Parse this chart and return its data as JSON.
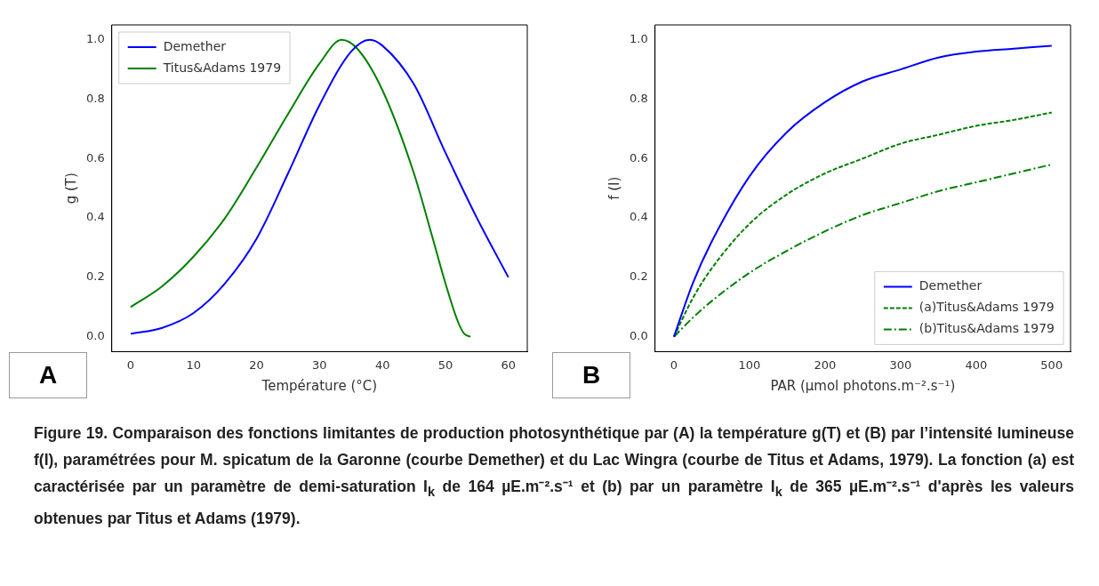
{
  "chart_data": [
    {
      "type": "line",
      "xlabel": "Température (°C)",
      "ylabel": "g (T)",
      "xlim": [
        -3,
        63
      ],
      "ylim": [
        -0.05,
        1.05
      ],
      "xticks": [
        0,
        10,
        20,
        30,
        40,
        50,
        60
      ],
      "yticks": [
        {
          "value": 0,
          "label": "0.0"
        },
        {
          "value": 0.2,
          "label": "0.2"
        },
        {
          "value": 0.4,
          "label": "0.4"
        },
        {
          "value": 0.6,
          "label": "0.6"
        },
        {
          "value": 0.8,
          "label": "0.8"
        },
        {
          "value": 1,
          "label": "1.0"
        }
      ],
      "grid": false,
      "legend": "top left",
      "annotations": [
        "A"
      ],
      "series": [
        {
          "name": "Demether",
          "color": "#0000ff",
          "line_style": "solid",
          "x": [
            0,
            5,
            10,
            15,
            20,
            25,
            30,
            35,
            38,
            40,
            45,
            50,
            55,
            60
          ],
          "values": [
            0.01,
            0.03,
            0.08,
            0.18,
            0.33,
            0.55,
            0.78,
            0.96,
            1.0,
            0.98,
            0.85,
            0.62,
            0.4,
            0.2
          ]
        },
        {
          "name": "Titus&Adams 1979",
          "color": "#008000",
          "line_style": "solid",
          "x": [
            0,
            5,
            10,
            15,
            20,
            25,
            30,
            33.5,
            36,
            40,
            45,
            48,
            50,
            52,
            53,
            54
          ],
          "values": [
            0.1,
            0.17,
            0.27,
            0.4,
            0.57,
            0.75,
            0.92,
            1.0,
            0.97,
            0.83,
            0.55,
            0.33,
            0.18,
            0.05,
            0.01,
            0.0
          ]
        }
      ]
    },
    {
      "type": "line",
      "xlabel": "PAR (µmol photons.m⁻².s⁻¹)",
      "ylabel": "f (I)",
      "xlim": [
        -25,
        525
      ],
      "ylim": [
        -0.05,
        1.05
      ],
      "xticks": [
        0,
        100,
        200,
        300,
        400,
        500
      ],
      "yticks": [
        {
          "value": 0,
          "label": "0.0"
        },
        {
          "value": 0.2,
          "label": "0.2"
        },
        {
          "value": 0.4,
          "label": "0.4"
        },
        {
          "value": 0.6,
          "label": "0.6"
        },
        {
          "value": 0.8,
          "label": "0.8"
        },
        {
          "value": 1,
          "label": "1.0"
        }
      ],
      "grid": false,
      "legend": "bottom right",
      "annotations": [
        "B",
        "Figure 19. Comparaison des fonctions limitantes de production photosynthétique par (A) la température g(T) et (B) par l’intensité lumineuse f(I), paramétrées pour M. spicatum de la Garonne (courbe Demether) et du Lac Wingra (courbe de Titus et Adams, 1979). La fonction (a) est caractérisée par un paramètre de demi-saturation I$_{k}$ de 164 µE.m⁻².s⁻¹ et (b) par un paramètre I$_{k}$ de 365 µE.m⁻².s⁻¹ d'après les valeurs obtenues par Titus et Adams (1979)."
      ],
      "series": [
        {
          "name": "Demether",
          "color": "#0000ff",
          "line_style": "solid",
          "x": [
            0,
            25,
            50,
            100,
            150,
            200,
            250,
            300,
            350,
            400,
            450,
            500
          ],
          "values": [
            0,
            0.18,
            0.32,
            0.54,
            0.69,
            0.79,
            0.86,
            0.9,
            0.94,
            0.96,
            0.97,
            0.98
          ]
        },
        {
          "name": "(a)Titus&Adams 1979",
          "color": "#008000",
          "line_style": "dashed",
          "x": [
            0,
            25,
            50,
            100,
            150,
            200,
            250,
            300,
            350,
            400,
            450,
            500
          ],
          "values": [
            0,
            0.13,
            0.23,
            0.38,
            0.48,
            0.55,
            0.6,
            0.65,
            0.68,
            0.71,
            0.73,
            0.755
          ]
        },
        {
          "name": "(b)Titus&Adams 1979",
          "color": "#008000",
          "line_style": "dashdot",
          "x": [
            0,
            25,
            50,
            100,
            150,
            200,
            250,
            300,
            350,
            400,
            450,
            500
          ],
          "values": [
            0,
            0.064,
            0.12,
            0.215,
            0.29,
            0.355,
            0.41,
            0.45,
            0.49,
            0.52,
            0.55,
            0.58
          ]
        }
      ]
    }
  ]
}
